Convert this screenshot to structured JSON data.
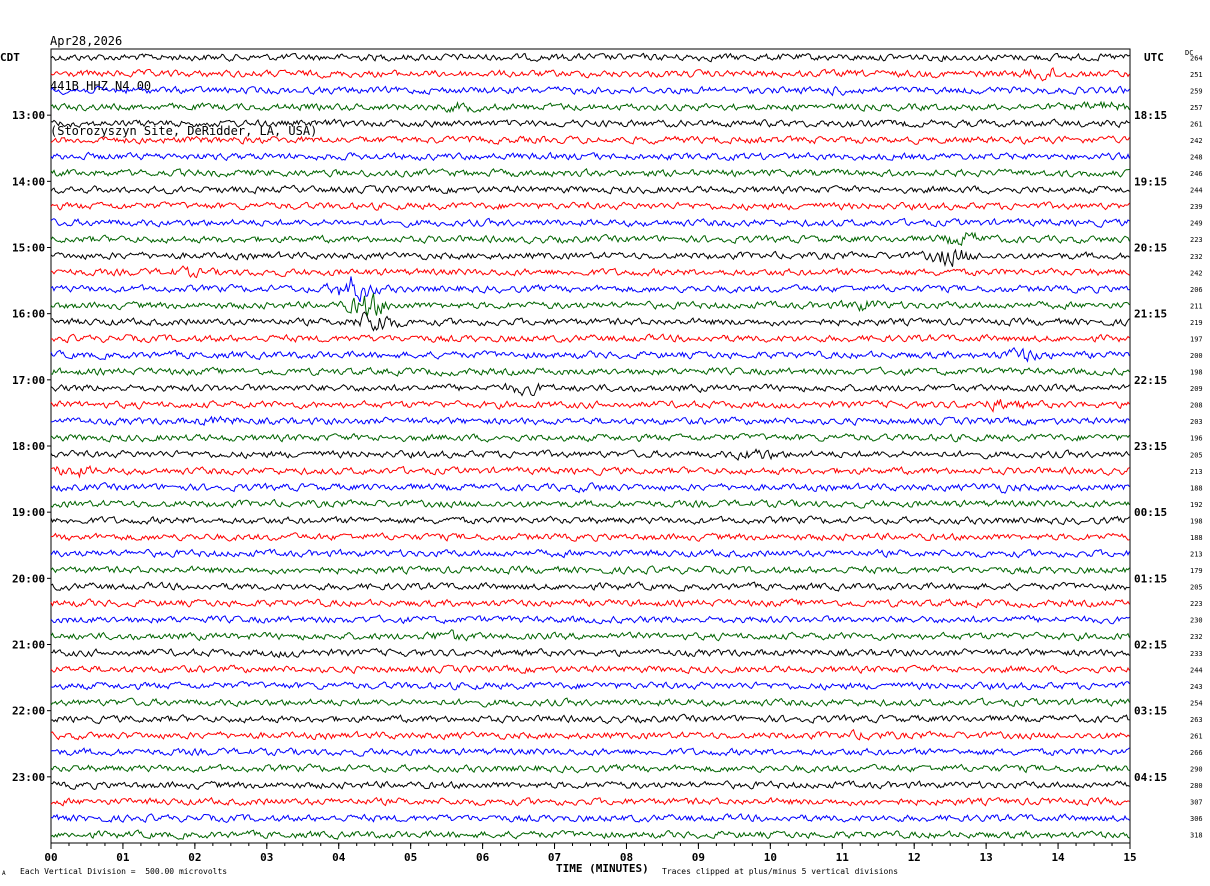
{
  "header": {
    "date": "Apr28,2026",
    "station": "441B HHZ N4 00",
    "site": "(Storozyszyn Site, DeRidder, LA, USA)"
  },
  "left_zone": "CDT",
  "right_zone": "UTC",
  "dc_header": "DC",
  "footer": {
    "scale": "Each Vertical Division =  500.00 microvolts",
    "clip_note": "Traces clipped at plus/minus 5 vertical divisions",
    "corner_mark": "A"
  },
  "chart_data": {
    "type": "line",
    "title": "441B HHZ N4 00",
    "xlabel": "TIME (MINUTES)",
    "x_ticks": [
      "00",
      "01",
      "02",
      "03",
      "04",
      "05",
      "06",
      "07",
      "08",
      "09",
      "10",
      "11",
      "12",
      "13",
      "14",
      "15"
    ],
    "xlim": [
      0,
      15
    ],
    "trace_colors": [
      "#000000",
      "#ff0000",
      "#0000ff",
      "#006400"
    ],
    "left_hour_labels": [
      "13:00",
      "14:00",
      "15:00",
      "16:00",
      "17:00",
      "18:00",
      "19:00",
      "20:00",
      "21:00",
      "22:00",
      "23:00"
    ],
    "right_hour_labels": [
      "18:15",
      "19:15",
      "20:15",
      "21:15",
      "22:15",
      "23:15",
      "00:15",
      "01:15",
      "02:15",
      "03:15",
      "04:15"
    ],
    "dc_offsets": [
      264,
      251,
      259,
      257,
      261,
      242,
      248,
      246,
      244,
      239,
      249,
      223,
      232,
      242,
      206,
      211,
      219,
      197,
      200,
      198,
      209,
      208,
      203,
      196,
      205,
      213,
      188,
      192,
      198,
      188,
      213,
      179,
      205,
      223,
      230,
      232,
      233,
      244,
      243,
      254,
      263,
      261,
      266,
      290,
      280,
      307,
      306,
      318
    ],
    "bursts": [
      {
        "trace": 1,
        "minute": 13.8,
        "amp": 2.2
      },
      {
        "trace": 3,
        "minute": 5.7,
        "amp": 1.6
      },
      {
        "trace": 3,
        "minute": 14.6,
        "amp": 1.8
      },
      {
        "trace": 2,
        "minute": 11.0,
        "amp": 1.5
      },
      {
        "trace": 11,
        "minute": 12.7,
        "amp": 2.3
      },
      {
        "trace": 12,
        "minute": 12.5,
        "amp": 3.0
      },
      {
        "trace": 13,
        "minute": 1.9,
        "amp": 1.6
      },
      {
        "trace": 14,
        "minute": 4.2,
        "amp": 4.0
      },
      {
        "trace": 15,
        "minute": 4.4,
        "amp": 4.0
      },
      {
        "trace": 15,
        "minute": 11.3,
        "amp": 2.0
      },
      {
        "trace": 16,
        "minute": 4.5,
        "amp": 3.5
      },
      {
        "trace": 18,
        "minute": 13.5,
        "amp": 2.2
      },
      {
        "trace": 20,
        "minute": 6.6,
        "amp": 2.0
      },
      {
        "trace": 21,
        "minute": 13.2,
        "amp": 2.0
      },
      {
        "trace": 22,
        "minute": 2.3,
        "amp": 1.6
      },
      {
        "trace": 24,
        "minute": 9.8,
        "amp": 2.0
      },
      {
        "trace": 25,
        "minute": 0.3,
        "amp": 2.0
      },
      {
        "trace": 26,
        "minute": 7.5,
        "amp": 1.4
      },
      {
        "trace": 26,
        "minute": 13.2,
        "amp": 1.5
      },
      {
        "trace": 35,
        "minute": 5.5,
        "amp": 1.8
      },
      {
        "trace": 36,
        "minute": 3.3,
        "amp": 1.4
      },
      {
        "trace": 41,
        "minute": 11.3,
        "amp": 1.5
      }
    ]
  }
}
